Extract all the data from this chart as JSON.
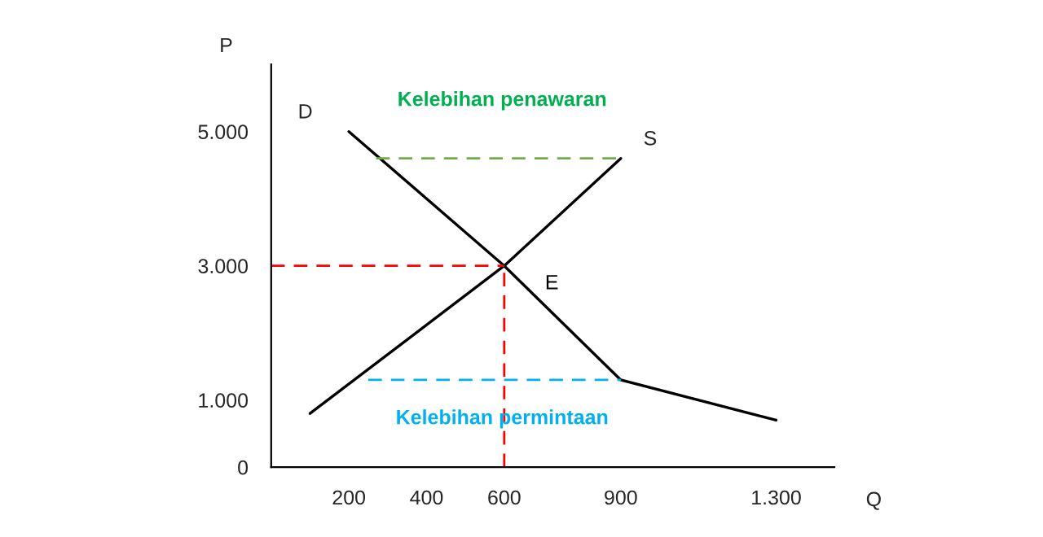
{
  "chart_data": {
    "type": "line",
    "xlabel": "Q",
    "ylabel": "P",
    "xlim": [
      0,
      1450
    ],
    "ylim": [
      0,
      6000
    ],
    "xticks": [
      200,
      400,
      600,
      900,
      {
        "value": 1300,
        "label": "1.300"
      }
    ],
    "yticks": [
      0,
      {
        "value": 1000,
        "label": "1.000"
      },
      {
        "value": 3000,
        "label": "3.000"
      },
      {
        "value": 5000,
        "label": "5.000"
      }
    ],
    "grid": false,
    "legend": false,
    "marker": "none",
    "series": [
      {
        "name": "D",
        "color": "#000000",
        "x": [
          1300,
          900,
          600,
          200
        ],
        "values": [
          700,
          1300,
          3000,
          5000
        ]
      },
      {
        "name": "S",
        "color": "#000000",
        "x": [
          100,
          600,
          900
        ],
        "values": [
          800,
          3000,
          4600
        ]
      },
      {
        "color": "#ff0000",
        "line_style": "dashed",
        "x": [
          0,
          600
        ],
        "values": [
          3000,
          3000
        ]
      },
      {
        "color": "#ff0000",
        "line_style": "dashed",
        "x": [
          600,
          600
        ],
        "values": [
          0,
          3000
        ]
      },
      {
        "color": "#70ad47",
        "line_style": "dashed",
        "x": [
          270,
          900
        ],
        "values": [
          4600,
          4600
        ]
      },
      {
        "color": "#00b0f0",
        "line_style": "dashed",
        "x": [
          250,
          900
        ],
        "values": [
          1300,
          1300
        ]
      }
    ],
    "annotations": [
      {
        "text": "E",
        "x": 600,
        "y": 3000
      },
      "Kelebihan penawaran",
      "Kelebihan permintaan"
    ]
  }
}
